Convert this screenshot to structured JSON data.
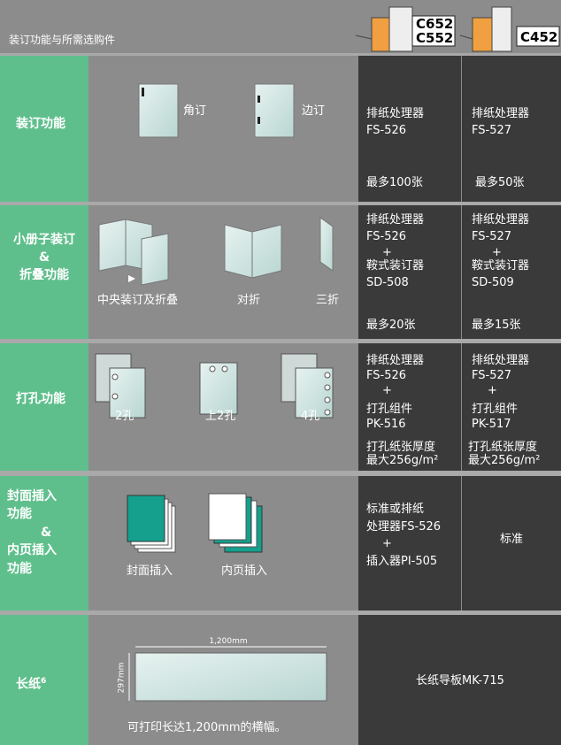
{
  "header": {
    "title": "装订功能与所需选购件",
    "models": [
      [
        "C652",
        "C552"
      ],
      [
        "C452"
      ]
    ]
  },
  "rows": [
    {
      "feature": [
        "装订功能"
      ],
      "illustrations": [
        "角订",
        "边订"
      ],
      "model_1": [
        "排纸处理器",
        "FS-526",
        "最多100张"
      ],
      "model_2": [
        "排纸处理器",
        "FS-527",
        "最多50张"
      ]
    },
    {
      "feature": [
        "小册子装订",
        "&",
        "折叠功能"
      ],
      "illustrations": [
        "中央装订及折叠",
        "对折",
        "三折"
      ],
      "model_1": [
        "排纸处理器",
        "FS-526",
        "+",
        "鞍式装订器",
        "SD-508",
        "最多20张"
      ],
      "model_2": [
        "排纸处理器",
        "FS-527",
        "+",
        "鞍式装订器",
        "SD-509",
        "最多15张"
      ]
    },
    {
      "feature": [
        "打孔功能"
      ],
      "illustrations": [
        "2孔",
        "上2孔",
        "4孔"
      ],
      "model_1": [
        "排纸处理器",
        "FS-526",
        "+",
        "打孔组件",
        "PK-516",
        "打孔纸张厚度",
        "最大256g/m²"
      ],
      "model_2": [
        "排纸处理器",
        "FS-527",
        "+",
        "打孔组件",
        "PK-517",
        "打孔纸张厚度",
        "最大256g/m²"
      ]
    },
    {
      "feature": [
        "封面插入",
        "功能",
        "&",
        "内页插入",
        "功能"
      ],
      "illustrations": [
        "封面插入",
        "内页插入"
      ],
      "model_1": [
        "标准或排纸",
        "处理器FS-526",
        "+",
        "插入器PI-505"
      ],
      "model_2": [
        "标准"
      ]
    },
    {
      "feature": [
        "长纸"
      ],
      "footnote": "6",
      "illustrations": [
        "1,200mm",
        "297mm",
        "可打印长达1,200mm的横幅。"
      ],
      "all_models": "长纸导板MK-715"
    }
  ]
}
